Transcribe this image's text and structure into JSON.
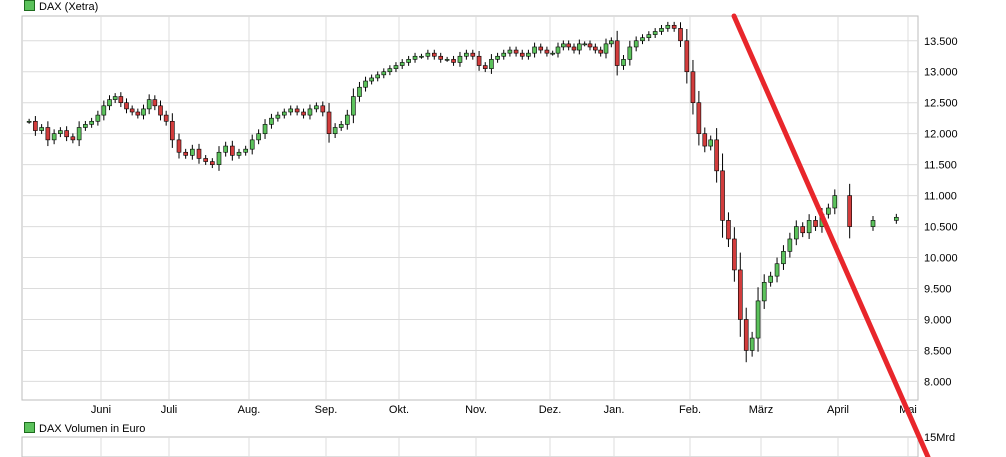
{
  "legend": {
    "price": "DAX (Xetra)",
    "volume": "DAX Volumen in Euro"
  },
  "colors": {
    "up": "#5cc25c",
    "down": "#d23c3c",
    "grid": "#dcdcdc",
    "trendline": "#e8262b"
  },
  "chart_data": {
    "type": "candlestick",
    "x_ticks": [
      "Juni",
      "Juli",
      "Aug.",
      "Sep.",
      "Okt.",
      "Nov.",
      "Dez.",
      "Jan.",
      "Feb.",
      "März",
      "April",
      "Mai"
    ],
    "y_ticks": [
      "13.500",
      "13.000",
      "12.500",
      "12.000",
      "11.500",
      "11.000",
      "10.500",
      "10.000",
      "9.500",
      "9.000",
      "8.500",
      "8.000"
    ],
    "ylim": [
      7700,
      13900
    ],
    "volume_axis_label": "15Mrd",
    "grid": true,
    "trendline": {
      "from": [
        "Feb.",
        13900
      ],
      "to": [
        "Mai",
        7700
      ]
    },
    "series": [
      {
        "x": "Juni",
        "close": [
          12200,
          12050,
          12100,
          11900,
          12000,
          12050,
          11950,
          11900,
          12100,
          12150,
          12200,
          12300
        ]
      },
      {
        "x": "Juli",
        "close": [
          12450,
          12550,
          12600,
          12500,
          12400,
          12350,
          12300,
          12400,
          12550,
          12450,
          12300,
          12200
        ]
      },
      {
        "x": "Aug.",
        "close": [
          11900,
          11700,
          11650,
          11750,
          11600,
          11550,
          11500,
          11700,
          11800,
          11650,
          11700,
          11750
        ]
      },
      {
        "x": "Sep.",
        "close": [
          11900,
          12000,
          12150,
          12250,
          12300,
          12350,
          12400,
          12350,
          12300,
          12400,
          12450,
          12350
        ]
      },
      {
        "x": "Okt.",
        "close": [
          12000,
          12100,
          12150,
          12300,
          12600,
          12750,
          12850,
          12900,
          12950,
          13000,
          13050,
          13100
        ]
      },
      {
        "x": "Nov.",
        "close": [
          13150,
          13200,
          13250,
          13250,
          13300,
          13250,
          13200,
          13200,
          13150,
          13250,
          13300,
          13250
        ]
      },
      {
        "x": "Dez.",
        "close": [
          13100,
          13050,
          13200,
          13250,
          13300,
          13350,
          13300,
          13250,
          13300,
          13400,
          13350,
          13300
        ]
      },
      {
        "x": "Jan.",
        "close": [
          13300,
          13400,
          13450,
          13400,
          13350,
          13450,
          13450,
          13400,
          13350,
          13300,
          13450,
          13500
        ]
      },
      {
        "x": "Feb.",
        "close": [
          13100,
          13200,
          13400,
          13500,
          13550,
          13600,
          13650,
          13700,
          13750,
          13700,
          13500,
          13000
        ]
      },
      {
        "x": "März",
        "close": [
          12500,
          12000,
          11800,
          11900,
          11400,
          10600,
          10300,
          9800,
          9000,
          8500,
          8700,
          9300
        ]
      },
      {
        "x": "April",
        "close": [
          9600,
          9700,
          9900,
          10100,
          10300,
          10500,
          10400,
          10600,
          10500,
          10700,
          10800,
          11000
        ]
      },
      {
        "x": "Mai",
        "close": [
          10500,
          10600,
          10650
        ]
      }
    ]
  }
}
